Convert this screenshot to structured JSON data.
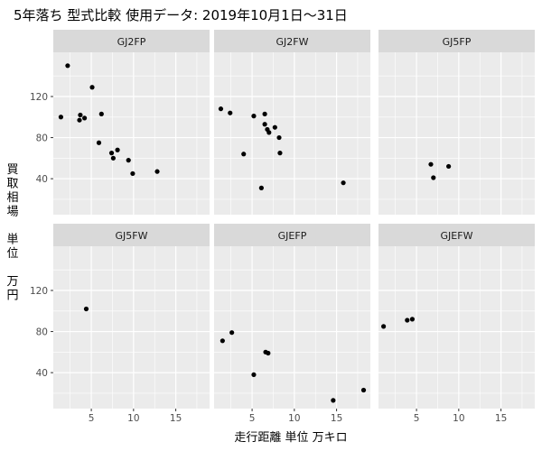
{
  "chart_data": {
    "type": "scatter",
    "title": "5年落ち 型式比較 使用データ: 2019年10月1日～31日",
    "xlabel": "走行距離 単位 万キロ",
    "ylabel_lines": [
      "買",
      "取",
      "相",
      "場",
      "",
      "単",
      "位",
      "",
      "万",
      "円"
    ],
    "xlim": [
      0.5,
      19
    ],
    "ylim": [
      5,
      163
    ],
    "x_ticks": [
      5,
      10,
      15
    ],
    "y_ticks": [
      40,
      80,
      120
    ],
    "grid": true,
    "panels": [
      {
        "name": "GJ2FP",
        "points": [
          [
            1.4,
            100
          ],
          [
            2.2,
            150
          ],
          [
            3.6,
            97
          ],
          [
            3.7,
            102
          ],
          [
            4.2,
            99
          ],
          [
            5.1,
            129
          ],
          [
            5.9,
            75
          ],
          [
            6.2,
            103
          ],
          [
            7.4,
            65
          ],
          [
            7.6,
            60
          ],
          [
            8.1,
            68
          ],
          [
            9.4,
            58
          ],
          [
            9.9,
            45
          ],
          [
            12.8,
            47
          ]
        ]
      },
      {
        "name": "GJ2FW",
        "points": [
          [
            1.3,
            108
          ],
          [
            2.4,
            104
          ],
          [
            4.0,
            64
          ],
          [
            5.2,
            101
          ],
          [
            6.1,
            31
          ],
          [
            6.5,
            103
          ],
          [
            6.5,
            93
          ],
          [
            6.8,
            88
          ],
          [
            7.0,
            85
          ],
          [
            7.7,
            90
          ],
          [
            8.2,
            80
          ],
          [
            8.3,
            65
          ],
          [
            15.8,
            36
          ]
        ]
      },
      {
        "name": "GJ5FP",
        "points": [
          [
            6.7,
            54
          ],
          [
            7.0,
            41
          ],
          [
            8.8,
            52
          ]
        ]
      },
      {
        "name": "GJ5FW",
        "points": [
          [
            4.4,
            102
          ]
        ]
      },
      {
        "name": "GJEFP",
        "points": [
          [
            1.5,
            71
          ],
          [
            2.6,
            79
          ],
          [
            6.6,
            60
          ],
          [
            6.9,
            59
          ],
          [
            5.2,
            38
          ],
          [
            14.6,
            13
          ],
          [
            18.2,
            23
          ]
        ]
      },
      {
        "name": "GJEFW",
        "points": [
          [
            1.1,
            85
          ],
          [
            3.9,
            91
          ],
          [
            4.5,
            92
          ]
        ]
      }
    ]
  }
}
